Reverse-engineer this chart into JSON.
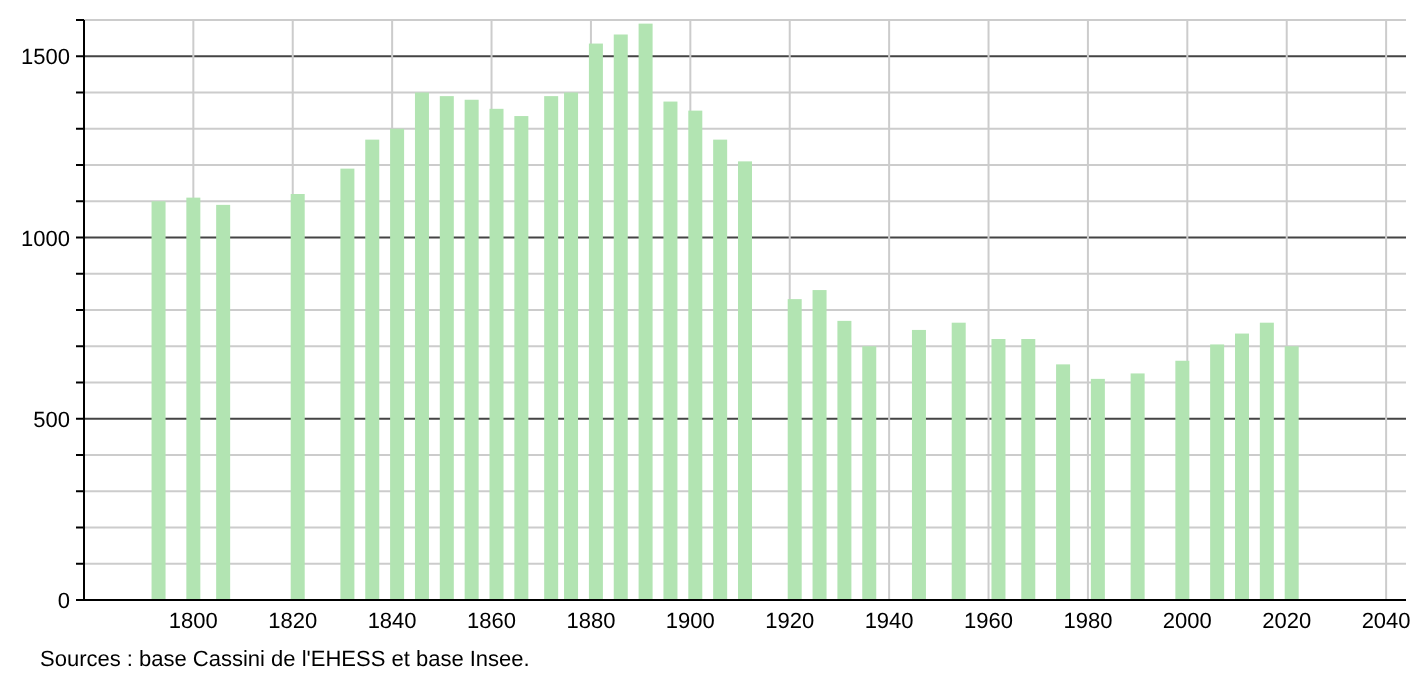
{
  "chart_data": {
    "type": "bar",
    "x": [
      1793,
      1800,
      1806,
      1821,
      1831,
      1836,
      1841,
      1846,
      1851,
      1856,
      1861,
      1866,
      1872,
      1876,
      1881,
      1886,
      1891,
      1896,
      1901,
      1906,
      1911,
      1921,
      1926,
      1931,
      1936,
      1946,
      1954,
      1962,
      1968,
      1975,
      1982,
      1990,
      1999,
      2006,
      2011,
      2016,
      2021
    ],
    "values": [
      1100,
      1110,
      1090,
      1120,
      1190,
      1270,
      1300,
      1400,
      1390,
      1380,
      1355,
      1335,
      1390,
      1400,
      1535,
      1560,
      1590,
      1375,
      1350,
      1270,
      1210,
      830,
      855,
      770,
      700,
      745,
      765,
      720,
      720,
      650,
      610,
      625,
      660,
      705,
      735,
      765,
      700
    ],
    "color": "#b2e4b2",
    "xlim": [
      1778,
      2044
    ],
    "xticks": [
      1800,
      1820,
      1840,
      1860,
      1880,
      1900,
      1920,
      1940,
      1960,
      1980,
      2000,
      2020,
      2040
    ],
    "ylim": [
      0,
      1600
    ],
    "yticks": [
      0,
      {
        "value": 100,
        "label": null
      },
      {
        "value": 200,
        "label": null
      },
      {
        "value": 300,
        "label": null
      },
      {
        "value": 400,
        "label": null
      },
      500,
      {
        "value": 600,
        "label": null
      },
      {
        "value": 700,
        "label": null
      },
      {
        "value": 800,
        "label": null
      },
      {
        "value": 900,
        "label": null
      },
      1000,
      {
        "value": 1100,
        "label": null
      },
      {
        "value": 1200,
        "label": null
      },
      {
        "value": 1300,
        "label": null
      },
      {
        "value": 1400,
        "label": null
      },
      1500,
      {
        "value": 1600,
        "label": null
      }
    ],
    "grid": true,
    "annotations": [
      "Sources : base Cassini de l'EHESS et base Insee."
    ]
  }
}
